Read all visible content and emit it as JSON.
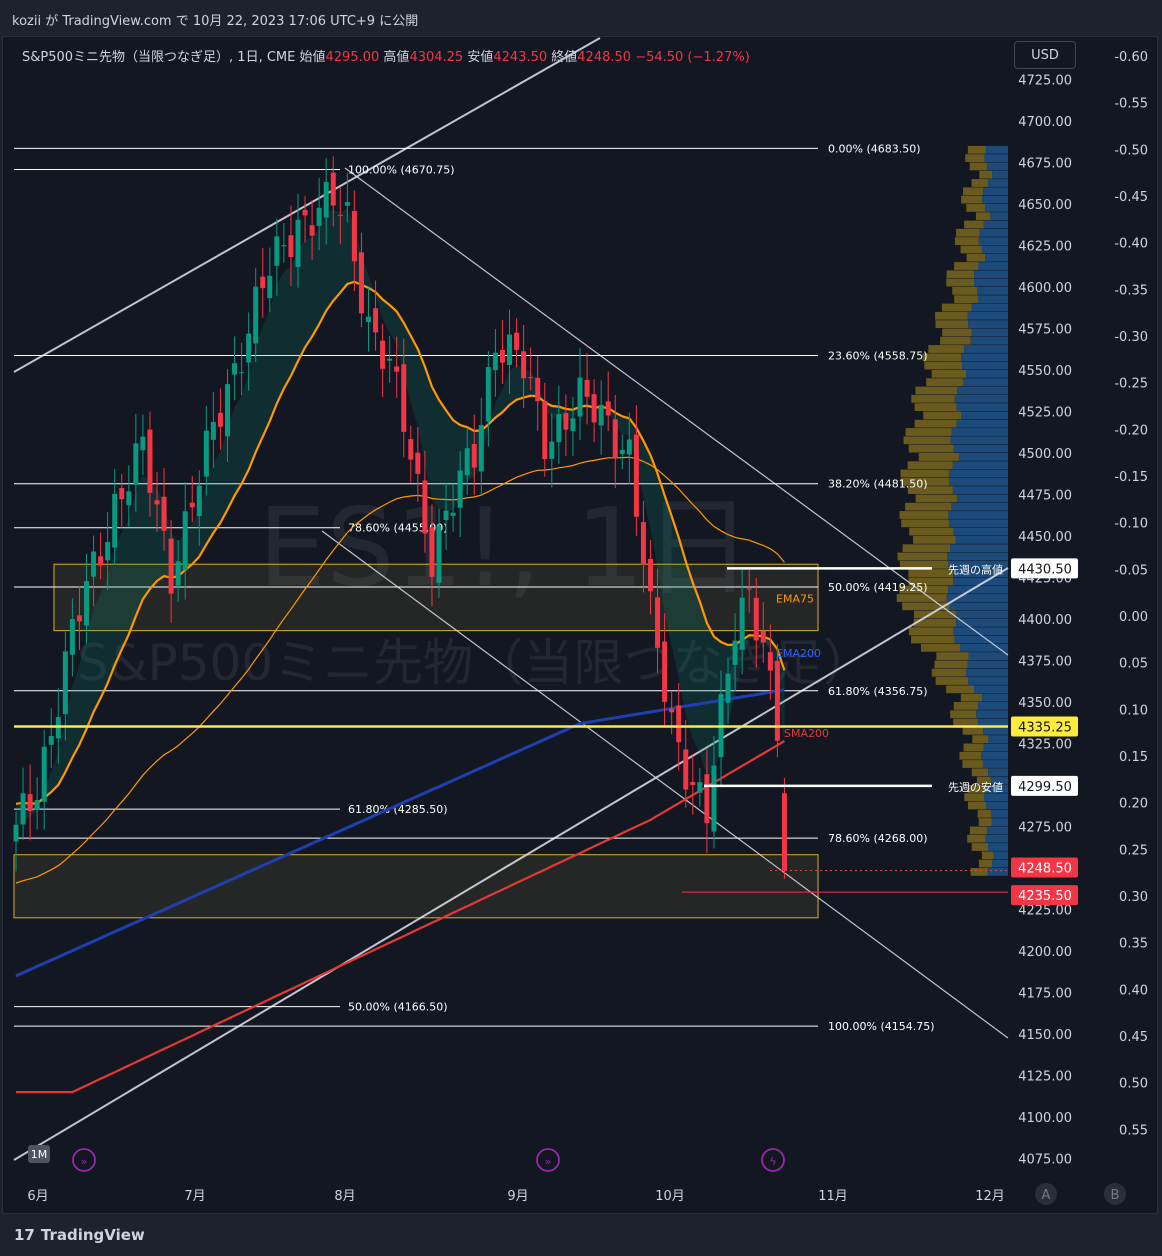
{
  "header": {
    "author_line": "kozii が TradingView.com で 10月 22, 2023 17:06 UTC+9 に公開"
  },
  "legend": {
    "symbol": "S&P500ミニ先物（当限つなぎ足）, 1日, CME",
    "open_label": "始値",
    "open": "4295.00",
    "high_label": "高値",
    "high": "4304.25",
    "low_label": "安値",
    "low": "4243.50",
    "close_label": "終値",
    "close": "4248.50",
    "change": "−54.50 (−1.27%)"
  },
  "currency_button": "USD",
  "watermark": {
    "big": "ES1!, 1日",
    "small": "S&P500ミニ先物（当限つなぎ足）"
  },
  "footer": {
    "brand": "TradingView"
  },
  "buttons": {
    "a": "A",
    "b": "B",
    "range": "1M"
  },
  "colors": {
    "up": "#089981",
    "down": "#f23645",
    "ema75": "#ff9800",
    "ema200": "#1e40af",
    "sma200": "#e53935",
    "fib": "#ffffff",
    "highlight_line": "#ffeb3b",
    "zone_border": "#d4b21c",
    "vp_up": "#1c4a7a",
    "vp_down": "#6b5a1e"
  },
  "chart_data": {
    "type": "candlestick",
    "symbol": "ES1!",
    "timeframe": "1日",
    "ylim": [
      4065,
      4737
    ],
    "y_ticks": [
      "4725.00",
      "4700.00",
      "4675.00",
      "4650.00",
      "4625.00",
      "4600.00",
      "4575.00",
      "4550.00",
      "4525.00",
      "4500.00",
      "4475.00",
      "4450.00",
      "4425.00",
      "4400.00",
      "4375.00",
      "4350.00",
      "4325.00",
      "4300.00",
      "4275.00",
      "4250.00",
      "4225.00",
      "4200.00",
      "4175.00",
      "4150.00",
      "4125.00",
      "4100.00",
      "4075.00"
    ],
    "right_ticks": [
      "-0.60",
      "-0.55",
      "-0.50",
      "-0.45",
      "-0.40",
      "-0.35",
      "-0.30",
      "-0.25",
      "-0.20",
      "-0.15",
      "-0.10",
      "-0.05",
      "0.00",
      "0.05",
      "0.10",
      "0.15",
      "0.20",
      "0.25",
      "0.30",
      "0.35",
      "0.40",
      "0.45",
      "0.50",
      "0.55"
    ],
    "x_ticks": [
      "6月",
      "7月",
      "8月",
      "9月",
      "10月",
      "11月",
      "12月"
    ],
    "fib_levels": [
      {
        "label": "0.00% (4683.50)",
        "price": 4683.5
      },
      {
        "label": "100.00% (4670.75)",
        "price": 4670.75
      },
      {
        "label": "23.60% (4558.75)",
        "price": 4558.75
      },
      {
        "label": "38.20% (4481.50)",
        "price": 4481.5
      },
      {
        "label": "78.60% (4455.00)",
        "price": 4455.0
      },
      {
        "label": "50.00% (4419.25)",
        "price": 4419.25
      },
      {
        "label": "61.80% (4356.75)",
        "price": 4356.75
      },
      {
        "label": "61.80% (4285.50)",
        "price": 4285.5
      },
      {
        "label": "78.60% (4268.00)",
        "price": 4268.0
      },
      {
        "label": "50.00% (4166.50)",
        "price": 4166.5
      },
      {
        "label": "100.00% (4154.75)",
        "price": 4154.75
      }
    ],
    "price_labels": [
      {
        "text": "4430.50",
        "price": 4430.5,
        "note": "先週の高値"
      },
      {
        "text": "4335.25",
        "price": 4335.25,
        "note": ""
      },
      {
        "text": "4299.50",
        "price": 4299.5,
        "note": "先週の安値"
      },
      {
        "text": "4248.50",
        "price": 4248.5,
        "note": ""
      },
      {
        "text": "4235.50",
        "price": 4235.5,
        "note": ""
      }
    ],
    "indicator_labels": [
      "EMA75",
      "EMA200",
      "SMA200"
    ],
    "zones": [
      {
        "top": 4433,
        "bottom": 4393
      },
      {
        "top": 4258,
        "bottom": 4220
      }
    ],
    "last": {
      "open": 4295.0,
      "high": 4304.25,
      "low": 4243.5,
      "close": 4248.5,
      "change": -54.5,
      "change_pct": -1.27
    }
  }
}
